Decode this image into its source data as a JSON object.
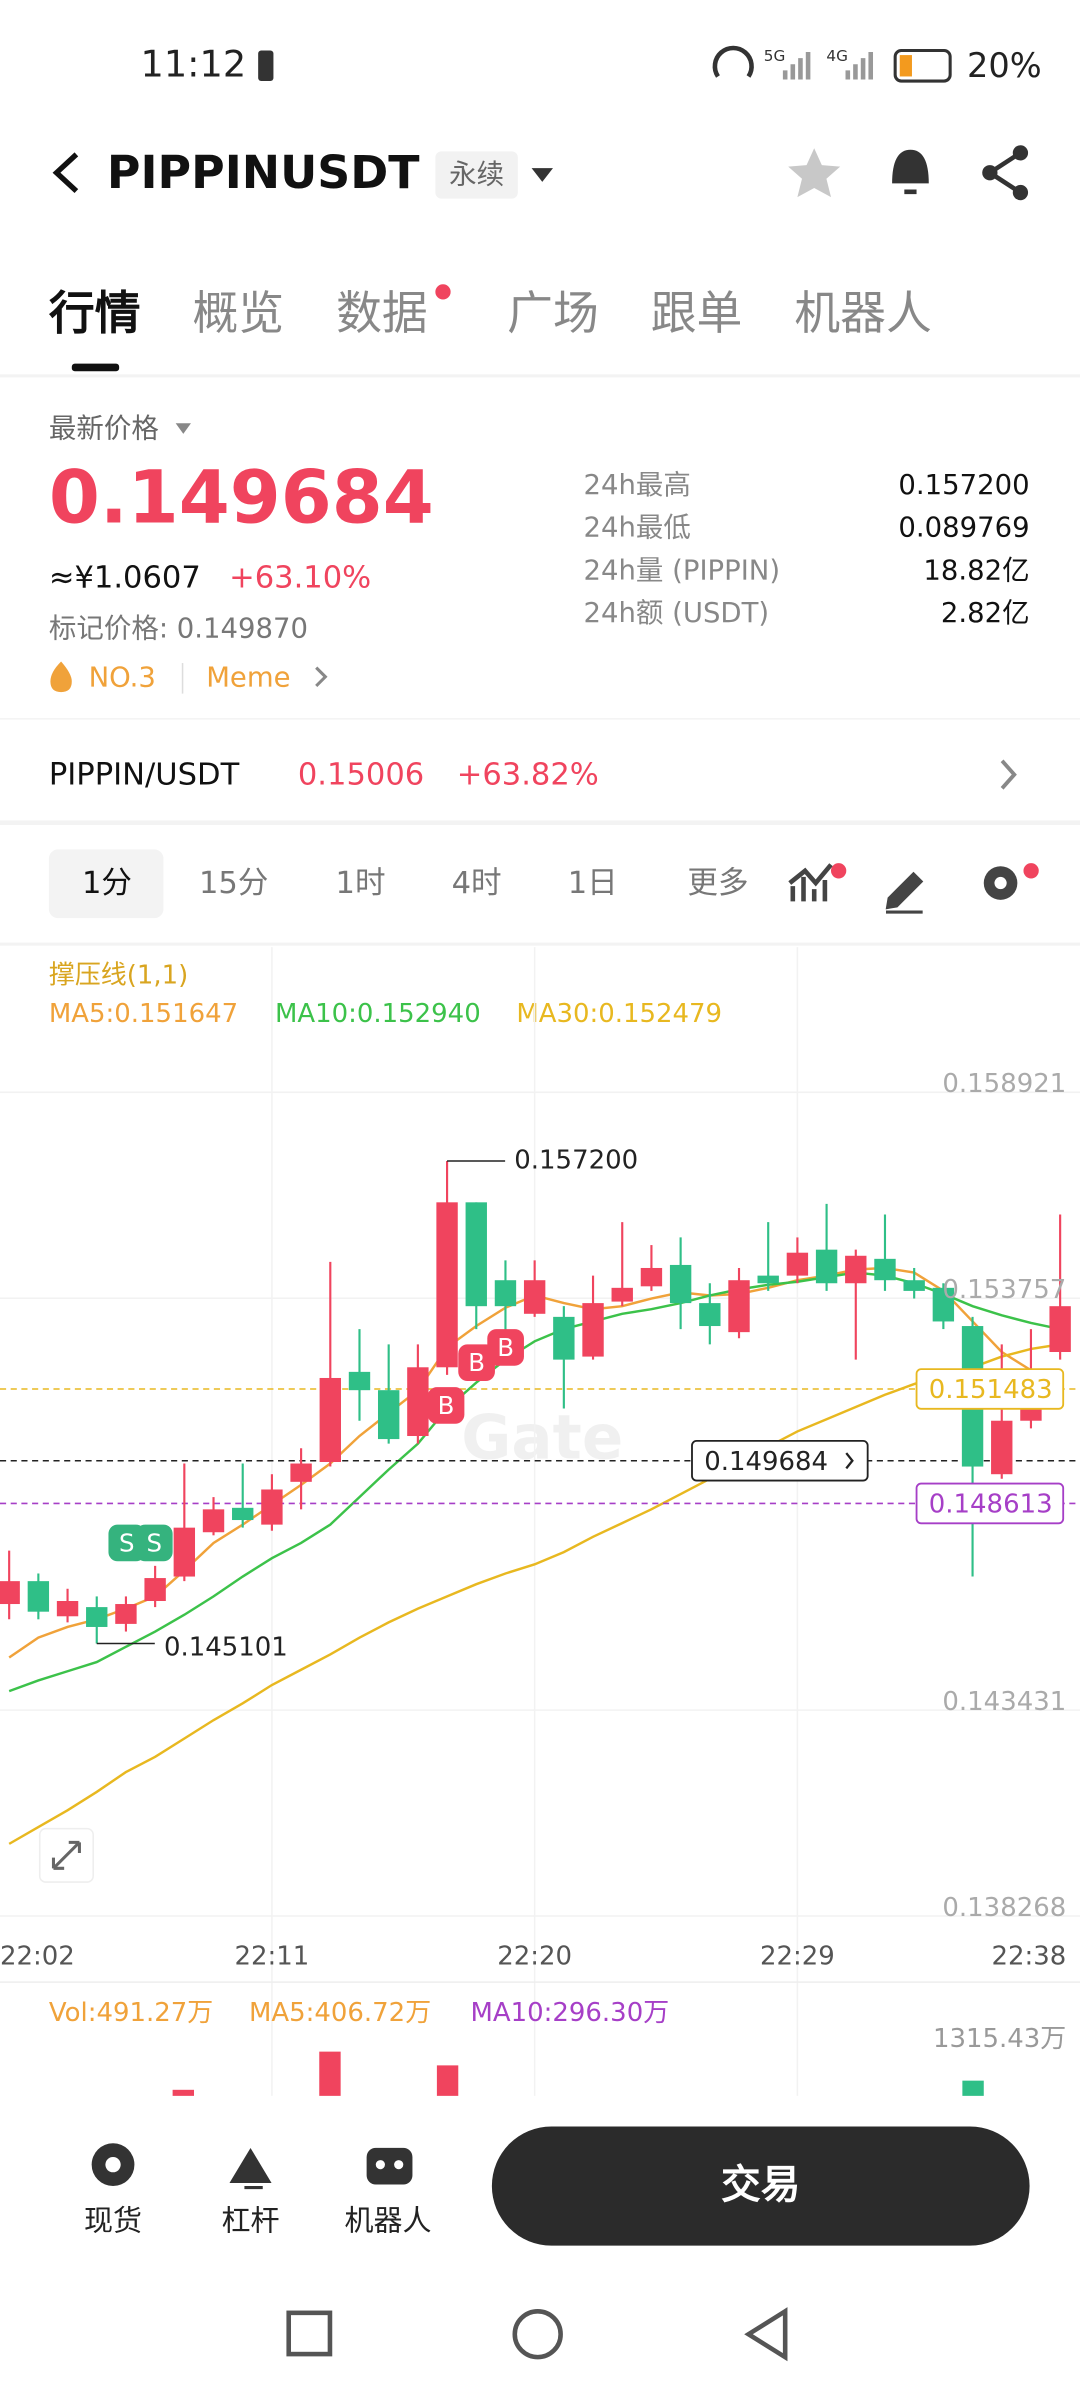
{
  "status_bar": {
    "time": "11:12",
    "network_1": "5G",
    "network_2": "4G",
    "battery": "20%"
  },
  "header": {
    "symbol": "PIPPINUSDT",
    "contract_type": "永续"
  },
  "tabs": [
    "行情",
    "概览",
    "数据",
    "广场",
    "跟单",
    "机器人"
  ],
  "price_panel": {
    "label": "最新价格",
    "last_price": "0.149684",
    "cny_price": "≈¥1.0607",
    "change": "+63.10%",
    "mark_price": "标记价格: 0.149870",
    "rank": "NO.3",
    "tag": "Meme",
    "stats": [
      {
        "label": "24h最高",
        "value": "0.157200"
      },
      {
        "label": "24h最低",
        "value": "0.089769"
      },
      {
        "label": "24h量 (PIPPIN)",
        "value": "18.82亿"
      },
      {
        "label": "24h额 (USDT)",
        "value": "2.82亿"
      }
    ]
  },
  "spot_row": {
    "pair": "PIPPIN/USDT",
    "price": "0.15006",
    "change": "+63.82%"
  },
  "intervals": [
    "1分",
    "15分",
    "1时",
    "4时",
    "1日",
    "更多"
  ],
  "chart_data": {
    "type": "candlestick",
    "indicator": "撑压线(1,1)",
    "watermark": "Gate",
    "up_color": "#f0445e",
    "down_color": "#2fbf87",
    "categories": [
      "22:02",
      null,
      null,
      null,
      null,
      null,
      null,
      null,
      null,
      "22:11",
      null,
      null,
      null,
      null,
      null,
      null,
      null,
      null,
      "22:20",
      null,
      null,
      null,
      null,
      null,
      null,
      null,
      null,
      "22:29",
      null,
      null,
      null,
      null,
      null,
      null,
      null,
      null,
      "22:38"
    ],
    "open": [
      0.146091,
      0.146665,
      0.145784,
      0.146014,
      0.145593,
      0.146167,
      0.14678,
      0.147891,
      0.148503,
      0.148082,
      0.149155,
      0.149652,
      0.151912,
      0.151453,
      0.150304,
      0.152027,
      0.156163,
      0.15421,
      0.153368,
      0.153291,
      0.152295,
      0.153674,
      0.154057,
      0.154593,
      0.153636,
      0.152908,
      0.154325,
      0.154325,
      0.154976,
      0.154134,
      0.154746,
      0.15421,
      0.154019,
      0.153061,
      0.149346,
      0.150687,
      0.15241
    ],
    "high": [
      0.147431,
      0.146857,
      0.146474,
      0.146282,
      0.146282,
      0.147048,
      0.149614,
      0.148772,
      0.149614,
      0.149346,
      0.149997,
      0.15467,
      0.152985,
      0.152602,
      0.152602,
      0.1572,
      0.156163,
      0.154708,
      0.154708,
      0.153559,
      0.154325,
      0.155666,
      0.155091,
      0.155283,
      0.154134,
      0.154517,
      0.155666,
      0.155283,
      0.156125,
      0.154976,
      0.155857,
      0.154517,
      0.154134,
      0.153291,
      0.152602,
      0.152985,
      0.155857
    ],
    "low": [
      0.145708,
      0.145708,
      0.145631,
      0.145101,
      0.145401,
      0.146014,
      0.146665,
      0.147814,
      0.148006,
      0.147929,
      0.148465,
      0.149538,
      0.150687,
      0.150112,
      0.150112,
      0.151836,
      0.152985,
      0.152602,
      0.153291,
      0.150993,
      0.152219,
      0.153559,
      0.153942,
      0.152985,
      0.152602,
      0.152755,
      0.153942,
      0.154134,
      0.153942,
      0.152219,
      0.153942,
      0.153751,
      0.152985,
      0.14678,
      0.149231,
      0.150495,
      0.152219
    ],
    "close": [
      0.146665,
      0.145899,
      0.146167,
      0.145516,
      0.146091,
      0.146742,
      0.148006,
      0.148465,
      0.148197,
      0.148963,
      0.149614,
      0.151759,
      0.151453,
      0.150227,
      0.152027,
      0.156163,
      0.153559,
      0.153559,
      0.15421,
      0.152219,
      0.153636,
      0.154019,
      0.154517,
      0.153636,
      0.153061,
      0.15421,
      0.154134,
      0.1549,
      0.154134,
      0.154823,
      0.15421,
      0.153942,
      0.153176,
      0.149538,
      0.150687,
      0.151644,
      0.153559
    ],
    "series": [
      {
        "label": "MA5:0.151647",
        "color": "#f0a23a",
        "values": [
          0.14475,
          0.145248,
          0.145516,
          0.145708,
          0.145976,
          0.146282,
          0.146933,
          0.147623,
          0.148082,
          0.14858,
          0.149078,
          0.149614,
          0.150304,
          0.150878,
          0.151453,
          0.152525,
          0.153061,
          0.153521,
          0.153827,
          0.153636,
          0.153482,
          0.153559,
          0.153751,
          0.153904,
          0.153827,
          0.153865,
          0.154019,
          0.15421,
          0.154325,
          0.154478,
          0.154517,
          0.154402,
          0.153942,
          0.153176,
          0.15241,
          0.15195,
          0.151644
        ]
      },
      {
        "label": "MA10:0.152940",
        "color": "#3cc24a",
        "values": [
          0.143907,
          0.144176,
          0.144405,
          0.144635,
          0.145018,
          0.145401,
          0.145822,
          0.146282,
          0.14678,
          0.14724,
          0.147623,
          0.148082,
          0.148772,
          0.149461,
          0.150112,
          0.150993,
          0.151644,
          0.152219,
          0.152678,
          0.152985,
          0.153176,
          0.153368,
          0.153482,
          0.153636,
          0.153827,
          0.15398,
          0.154095,
          0.154172,
          0.154287,
          0.154402,
          0.154325,
          0.154134,
          0.153865,
          0.153559,
          0.153329,
          0.153138,
          0.152985
        ]
      },
      {
        "label": "MA30:0.152479",
        "color": "#e8b820",
        "values": [
          0.140077,
          0.140499,
          0.14092,
          0.14138,
          0.141878,
          0.142261,
          0.14272,
          0.14318,
          0.143601,
          0.144061,
          0.144444,
          0.144827,
          0.145248,
          0.145631,
          0.145976,
          0.146282,
          0.146588,
          0.146857,
          0.147086,
          0.147393,
          0.147776,
          0.14812,
          0.148465,
          0.148848,
          0.149231,
          0.149614,
          0.150035,
          0.150418,
          0.150725,
          0.151031,
          0.151338,
          0.151606,
          0.151836,
          0.152027,
          0.152295,
          0.152487,
          0.152602
        ]
      }
    ],
    "ylim": [
      0.137856,
      0.159879
    ],
    "yticks": [
      0.158921,
      0.153757,
      0.143431,
      0.138268
    ],
    "grid": true,
    "price_lines": [
      {
        "value": 0.151483,
        "color": "#e8b820"
      },
      {
        "value": 0.149684,
        "color": "#222222"
      },
      {
        "value": 0.148613,
        "color": "#a63fc7"
      }
    ],
    "high_label": {
      "value": 0.1572,
      "label": "0.157200"
    },
    "low_label": 0.145101,
    "trade_markers": [
      "S",
      "S",
      "B",
      "B",
      "B"
    ]
  },
  "volume": {
    "vol": "Vol:491.27万",
    "ma5": "MA5:406.72万",
    "ma10": "MA10:296.30万",
    "axis_max": "1315.43万"
  },
  "bottom_nav": {
    "items": [
      "现货",
      "杠杆",
      "机器人"
    ],
    "trade_button": "交易"
  }
}
